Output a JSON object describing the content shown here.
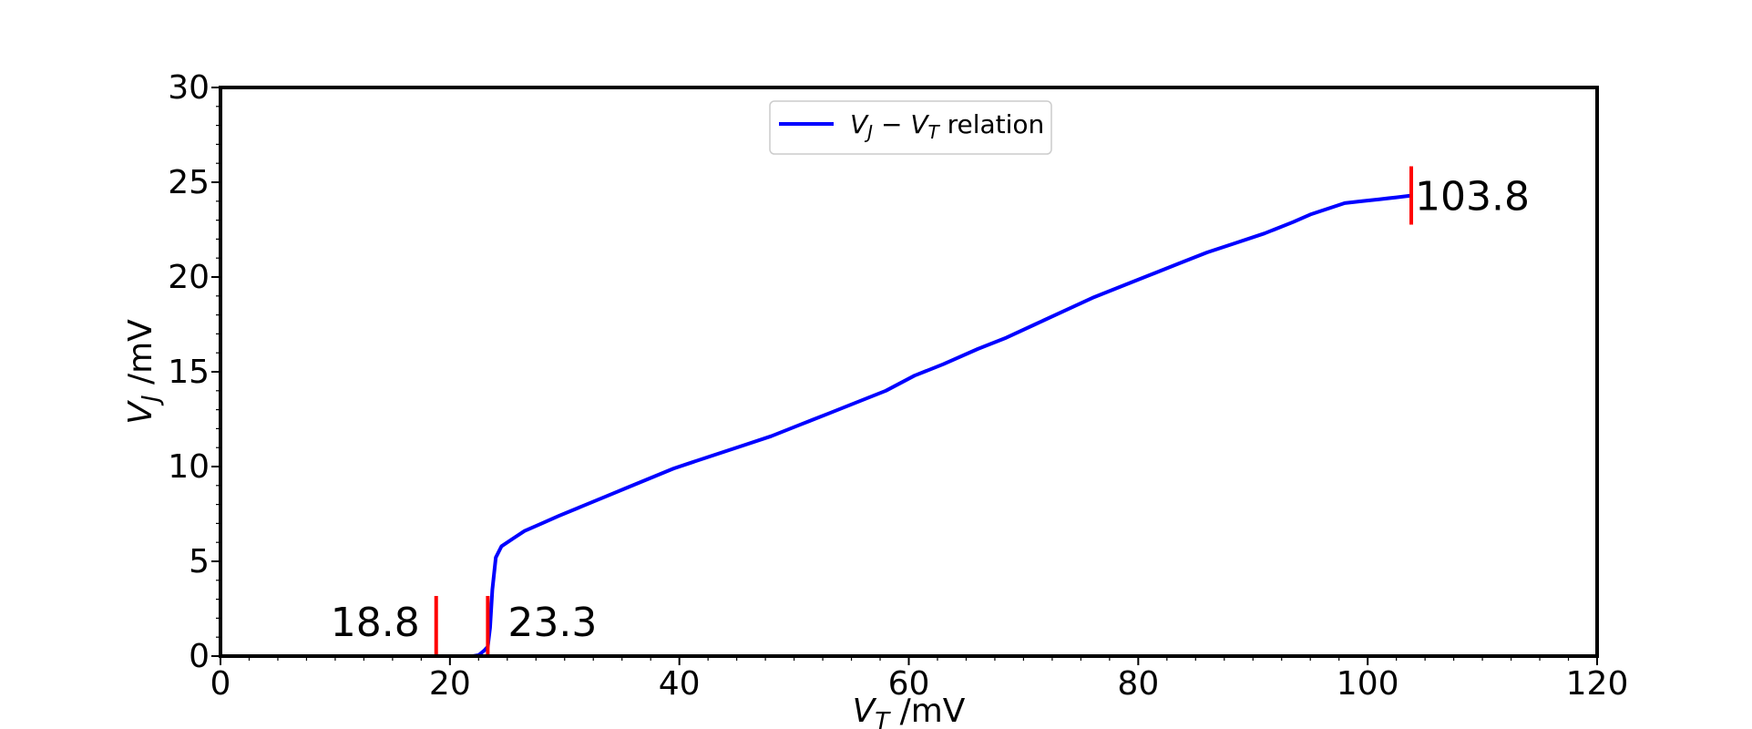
{
  "chart_data": {
    "type": "line",
    "xlabel": "V_T /mV",
    "ylabel": "V_J /mV",
    "xlim": [
      0,
      120
    ],
    "ylim": [
      0,
      30
    ],
    "xticks": [
      0,
      20,
      40,
      60,
      80,
      100,
      120
    ],
    "yticks": [
      0,
      5,
      10,
      15,
      20,
      25,
      30
    ],
    "grid": false,
    "legend_position": "upper-center",
    "series": [
      {
        "name": "V_J - V_T relation",
        "color": "#0000ff",
        "x": [
          18.8,
          20.0,
          21.0,
          22.0,
          22.5,
          23.0,
          23.3,
          23.5,
          23.7,
          24.0,
          24.5,
          25.5,
          26.5,
          28.0,
          29.5,
          31.5,
          33.5,
          35.5,
          37.5,
          39.5,
          41.0,
          43.0,
          45.5,
          48.0,
          50.5,
          53.0,
          55.5,
          58.0,
          60.5,
          63.0,
          66.0,
          68.5,
          71.0,
          73.5,
          76.0,
          78.5,
          81.0,
          83.5,
          86.0,
          88.5,
          91.0,
          93.5,
          95.0,
          96.5,
          98.0,
          99.5,
          101.0,
          102.5,
          103.8
        ],
        "y": [
          0.0,
          0.0,
          0.0,
          0.0,
          0.05,
          0.3,
          0.5,
          1.5,
          3.5,
          5.2,
          5.8,
          6.2,
          6.6,
          7.0,
          7.4,
          7.9,
          8.4,
          8.9,
          9.4,
          9.9,
          10.2,
          10.6,
          11.1,
          11.6,
          12.2,
          12.8,
          13.4,
          14.0,
          14.8,
          15.4,
          16.2,
          16.8,
          17.5,
          18.2,
          18.9,
          19.5,
          20.1,
          20.7,
          21.3,
          21.8,
          22.3,
          22.9,
          23.3,
          23.6,
          23.9,
          24.0,
          24.1,
          24.2,
          24.3
        ]
      }
    ],
    "annotations": [
      {
        "x": 18.8,
        "label": "18.8",
        "side": "left"
      },
      {
        "x": 23.3,
        "label": "23.3",
        "side": "right"
      },
      {
        "x": 103.8,
        "y": 24.3,
        "label": "103.8",
        "side": "right"
      }
    ]
  },
  "labels": {
    "x_main": "V",
    "x_sub": "T",
    "x_unit": " /mV",
    "y_main": "V",
    "y_sub": "J",
    "y_unit": " /mV",
    "legend_a": "V",
    "legend_a_sub": "J",
    "legend_minus": " − ",
    "legend_b": "V",
    "legend_b_sub": "T",
    "legend_rest": " relation"
  }
}
